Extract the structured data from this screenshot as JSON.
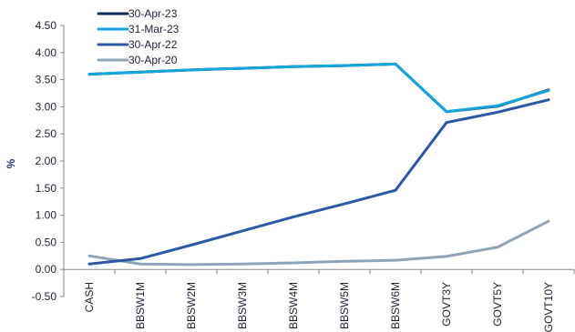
{
  "chart_data": {
    "type": "line",
    "ylabel": "%",
    "xlabel": "",
    "ylim": [
      -0.5,
      4.5
    ],
    "yticks": [
      -0.5,
      0.0,
      0.5,
      1.0,
      1.5,
      2.0,
      2.5,
      3.0,
      3.5,
      4.0,
      4.5
    ],
    "ytick_labels": [
      "-0.50",
      "0.00",
      "0.50",
      "1.00",
      "1.50",
      "2.00",
      "2.50",
      "3.00",
      "3.50",
      "4.00",
      "4.50"
    ],
    "categories": [
      "CASH",
      "BBSW1M",
      "BBSW2M",
      "BBSW3M",
      "BBSW4M",
      "BBSW5M",
      "BBSW6M",
      "GOVT3Y",
      "GOVT5Y",
      "GOVT10Y"
    ],
    "legend_position": "top-left",
    "grid": false,
    "series": [
      {
        "name": "30-Apr-23",
        "color": "#0d2a57",
        "values": [
          3.6,
          3.64,
          3.68,
          3.71,
          3.74,
          3.76,
          3.79,
          2.91,
          3.01,
          3.31
        ]
      },
      {
        "name": "31-Mar-23",
        "color": "#12a6dc",
        "values": [
          3.6,
          3.64,
          3.68,
          3.71,
          3.74,
          3.76,
          3.79,
          2.91,
          3.02,
          3.3
        ]
      },
      {
        "name": "30-Apr-22",
        "color": "#2b59a6",
        "values": [
          0.1,
          0.2,
          0.45,
          0.71,
          0.97,
          1.21,
          1.46,
          2.71,
          2.9,
          3.13
        ]
      },
      {
        "name": "30-Apr-20",
        "color": "#8fa3b8",
        "values": [
          0.25,
          0.1,
          0.09,
          0.1,
          0.12,
          0.15,
          0.17,
          0.24,
          0.41,
          0.89
        ]
      }
    ]
  }
}
